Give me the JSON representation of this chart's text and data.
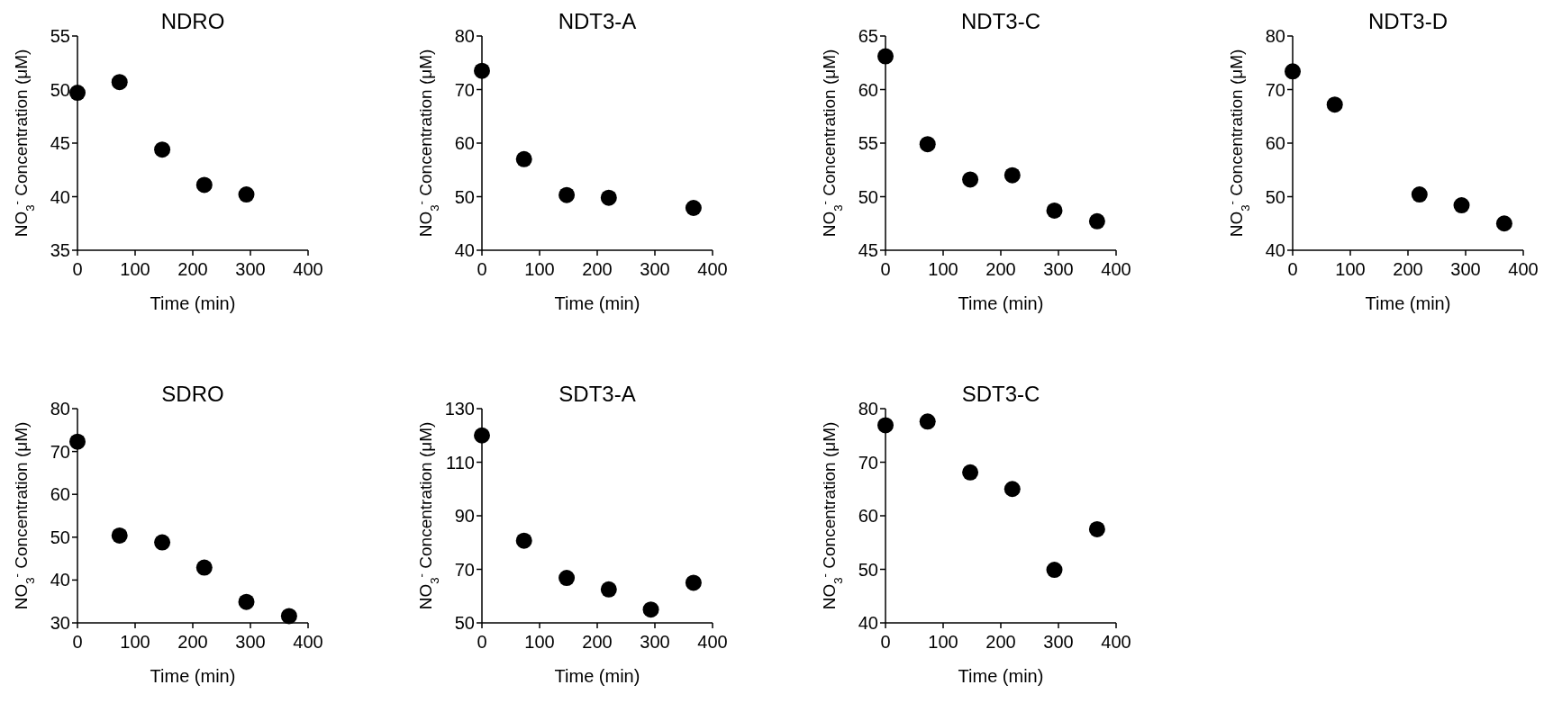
{
  "chart_data": [
    {
      "type": "scatter",
      "title": "NDRO",
      "xlabel": "Time (min)",
      "ylabel": "NO$_{3}$$^{-}$ Concentration (μM)",
      "x": [
        0,
        73,
        147,
        220,
        293
      ],
      "values": [
        49.7,
        50.7,
        44.4,
        41.1,
        40.2
      ],
      "color": "#000000",
      "marker": "circle",
      "xlim": [
        0,
        400
      ],
      "xticks": [
        0,
        100,
        200,
        300,
        400
      ],
      "ylim": [
        35,
        55
      ],
      "yticks": [
        35,
        40,
        45,
        50,
        55
      ]
    },
    {
      "type": "scatter",
      "title": "NDT3-A",
      "xlabel": "Time (min)",
      "ylabel": "NO$_{3}$$^{-}$ Concentration (μM)",
      "x": [
        0,
        73,
        147,
        220,
        367
      ],
      "values": [
        73.5,
        57,
        50.3,
        49.8,
        47.9
      ],
      "color": "#000000",
      "marker": "circle",
      "xlim": [
        0,
        400
      ],
      "xticks": [
        0,
        100,
        200,
        300,
        400
      ],
      "ylim": [
        40,
        80
      ],
      "yticks": [
        40,
        50,
        60,
        70,
        80
      ]
    },
    {
      "type": "scatter",
      "title": "NDT3-C",
      "xlabel": "Time (min)",
      "ylabel": "NO$_{3}$$^{-}$ Concentration (μM)",
      "x": [
        0,
        73,
        147,
        220,
        293,
        367
      ],
      "values": [
        63.1,
        54.9,
        51.6,
        52.0,
        48.7,
        47.7
      ],
      "color": "#000000",
      "marker": "circle",
      "xlim": [
        0,
        400
      ],
      "xticks": [
        0,
        100,
        200,
        300,
        400
      ],
      "ylim": [
        45,
        65
      ],
      "yticks": [
        45,
        50,
        55,
        60,
        65
      ]
    },
    {
      "type": "scatter",
      "title": "NDT3-D",
      "xlabel": "Time (min)",
      "ylabel": "NO$_{3}$$^{-}$ Concentration (μM)",
      "x": [
        0,
        73,
        220,
        293,
        367
      ],
      "values": [
        73.4,
        67.2,
        50.4,
        48.4,
        45
      ],
      "color": "#000000",
      "marker": "circle",
      "xlim": [
        0,
        400
      ],
      "xticks": [
        0,
        100,
        200,
        300,
        400
      ],
      "ylim": [
        40,
        80
      ],
      "yticks": [
        40,
        50,
        60,
        70,
        80
      ]
    },
    {
      "type": "scatter",
      "title": "SDRO",
      "xlabel": "Time (min)",
      "ylabel": "NO$_{3}$$^{-}$ Concentration (μM)",
      "x": [
        0,
        73,
        147,
        220,
        293,
        367
      ],
      "values": [
        72.3,
        50.4,
        48.8,
        42.9,
        34.9,
        31.6
      ],
      "color": "#000000",
      "marker": "circle",
      "xlim": [
        0,
        400
      ],
      "xticks": [
        0,
        100,
        200,
        300,
        400
      ],
      "ylim": [
        30,
        80
      ],
      "yticks": [
        30,
        40,
        50,
        60,
        70,
        80
      ]
    },
    {
      "type": "scatter",
      "title": "SDT3-A",
      "xlabel": "Time (min)",
      "ylabel": "NO$_{3}$$^{-}$ Concentration (μM)",
      "x": [
        0,
        73,
        147,
        220,
        293,
        367
      ],
      "values": [
        120,
        80.7,
        66.8,
        62.5,
        55,
        65
      ],
      "color": "#000000",
      "marker": "circle",
      "xlim": [
        0,
        400
      ],
      "xticks": [
        0,
        100,
        200,
        300,
        400
      ],
      "ylim": [
        50,
        130
      ],
      "yticks": [
        50,
        70,
        90,
        110,
        130
      ]
    },
    {
      "type": "scatter",
      "title": "SDT3-C",
      "xlabel": "Time (min)",
      "ylabel": "NO$_{3}$$^{-}$ Concentration (μM)",
      "x": [
        0,
        73,
        147,
        220,
        293,
        367
      ],
      "values": [
        76.9,
        77.6,
        68.1,
        65,
        49.9,
        57.5
      ],
      "color": "#000000",
      "marker": "circle",
      "xlim": [
        0,
        400
      ],
      "xticks": [
        0,
        100,
        200,
        300,
        400
      ],
      "ylim": [
        40,
        80
      ],
      "yticks": [
        40,
        50,
        60,
        70,
        80
      ]
    }
  ]
}
